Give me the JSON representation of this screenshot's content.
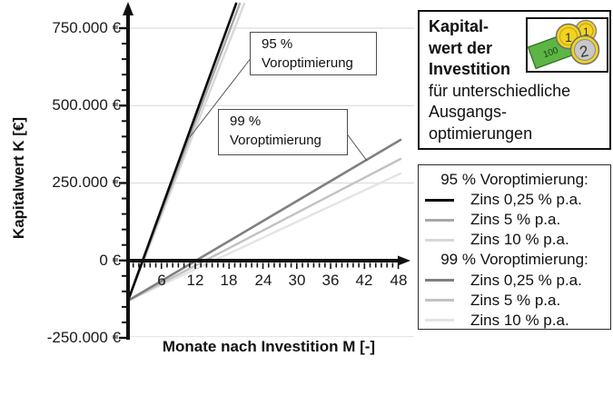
{
  "chart": {
    "y_axis_title": "Kapitalwert K [€]",
    "x_axis_title": "Monate nach Investition M [-]",
    "y_ticks": [
      "750.000 €",
      "500.000 €",
      "250.000 €",
      "0 €",
      "-250.000 €"
    ],
    "x_ticks": [
      "6",
      "12",
      "18",
      "24",
      "30",
      "36",
      "42",
      "48"
    ]
  },
  "chart_data": {
    "type": "line",
    "title": "Kapitalwert der Investition für unterschiedliche Ausgangsoptimierungen",
    "xlabel": "Monate nach Investition M [-]",
    "ylabel": "Kapitalwert K [€]",
    "xlim": [
      0,
      50
    ],
    "ylim": [
      -250000,
      800000
    ],
    "x_tick_values": [
      6,
      12,
      18,
      24,
      30,
      36,
      42,
      48
    ],
    "y_tick_values": [
      750000,
      500000,
      250000,
      0,
      -250000
    ],
    "grid": "horizontal-light",
    "legend_position": "outside-right",
    "series": [
      {
        "name": "95 % Voroptimierung, Zins 0,25 % p.a.",
        "color": "#0a0a0a",
        "approx_points_month_eur": [
          [
            0,
            -130000
          ],
          [
            2.9,
            0
          ],
          [
            18.5,
            770000
          ]
        ],
        "approx_slope_eur_per_month": 48500,
        "clipped_at_top": true
      },
      {
        "name": "95 % Voroptimierung, Zins 5 % p.a.",
        "color": "#a8a8a8",
        "approx_points_month_eur": [
          [
            0,
            -130000
          ],
          [
            3.3,
            0
          ],
          [
            19.2,
            770000
          ]
        ],
        "approx_slope_eur_per_month": 46800,
        "clipped_at_top": true
      },
      {
        "name": "95 % Voroptimierung, Zins 10 % p.a.",
        "color": "#d8d8d8",
        "approx_points_month_eur": [
          [
            0,
            -130000
          ],
          [
            3.6,
            0
          ],
          [
            20.0,
            770000
          ]
        ],
        "approx_slope_eur_per_month": 45000,
        "clipped_at_top": true
      },
      {
        "name": "99 % Voroptimierung, Zins 0,25 % p.a.",
        "color": "#808080",
        "approx_points_month_eur": [
          [
            0,
            -130000
          ],
          [
            12.2,
            0
          ],
          [
            48,
            390000
          ]
        ],
        "approx_slope_eur_per_month": 10800,
        "clipped_at_top": false
      },
      {
        "name": "99 % Voroptimierung, Zins 5 % p.a.",
        "color": "#c2c2c2",
        "approx_points_month_eur": [
          [
            0,
            -130000
          ],
          [
            13.7,
            0
          ],
          [
            48,
            330000
          ]
        ],
        "approx_slope_eur_per_month": 9600,
        "clipped_at_top": false
      },
      {
        "name": "99 % Voroptimierung, Zins 10 % p.a.",
        "color": "#e4e4e4",
        "approx_points_month_eur": [
          [
            0,
            -130000
          ],
          [
            15.2,
            0
          ],
          [
            48,
            285000
          ]
        ],
        "approx_slope_eur_per_month": 8650,
        "clipped_at_top": false
      }
    ],
    "annotations": [
      {
        "text": "95 % Voroptimierung",
        "points_to": "steep line bundle"
      },
      {
        "text": "99 % Voroptimierung",
        "points_to": "shallow line bundle"
      }
    ]
  },
  "callouts": {
    "c95": {
      "line1": "95 %",
      "line2": "Voroptimierung"
    },
    "c99": {
      "line1": "99 %",
      "line2": "Voroptimierung"
    }
  },
  "title_box": {
    "bold1": "Kapital-",
    "bold2": "wert der",
    "bold3": "Investition",
    "normal1": "für unterschiedliche",
    "normal2": "Ausgangs-",
    "normal3": "optimierungen",
    "icon": "money-banknote-and-coins-icon",
    "banknote_value": "100",
    "coin_front_value": "2",
    "coin_back_value": "1",
    "icon_colors": {
      "banknote_green": "#5cb545",
      "coin_gold": "#f2d321",
      "coin_silver": "#c8c8c8"
    }
  },
  "legend": {
    "groups": [
      {
        "header": "95 % Voroptimierung:",
        "items": [
          {
            "label": "Zins 0,25 % p.a.",
            "color": "#0a0a0a"
          },
          {
            "label": "Zins 5 % p.a.",
            "color": "#a8a8a8"
          },
          {
            "label": "Zins 10 % p.a.",
            "color": "#d8d8d8"
          }
        ]
      },
      {
        "header": "99 % Voroptimierung:",
        "items": [
          {
            "label": "Zins 0,25 % p.a.",
            "color": "#808080"
          },
          {
            "label": "Zins 5 % p.a.",
            "color": "#c2c2c2"
          },
          {
            "label": "Zins 10 % p.a.",
            "color": "#e4e4e4"
          }
        ]
      }
    ]
  }
}
